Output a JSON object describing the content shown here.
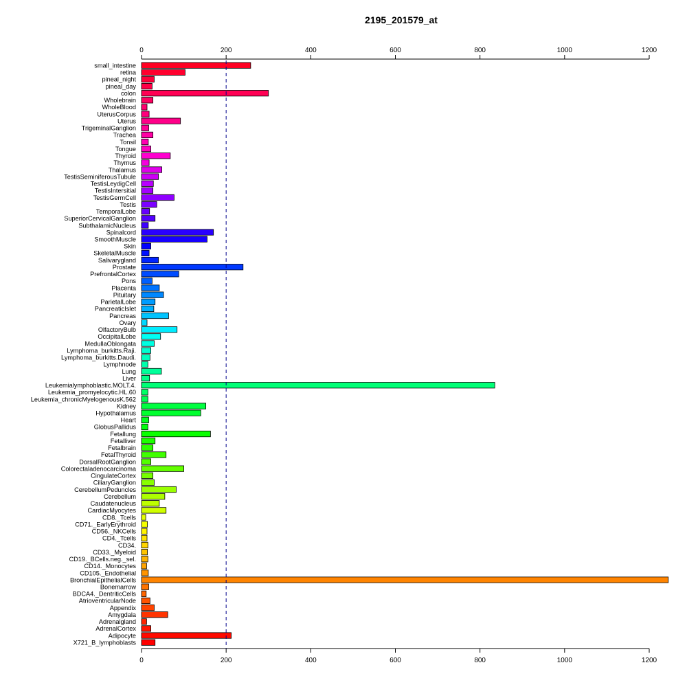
{
  "chart_data": {
    "type": "bar",
    "orientation": "horizontal",
    "title": "2195_201579_at",
    "xlim": [
      0,
      1250
    ],
    "x_ticks": [
      0,
      200,
      400,
      600,
      800,
      1000,
      1200
    ],
    "tick_labels": [
      "0",
      "200",
      "400",
      "600",
      "800",
      "1000",
      "1200"
    ],
    "axes_positions": [
      "top",
      "bottom"
    ],
    "reference_line": 200,
    "categories": [
      "small_intestine",
      "retina",
      "pineal_night",
      "pineal_day",
      "colon",
      "Wholebrain",
      "WholeBlood",
      "UterusCorpus",
      "Uterus",
      "TrigeminalGanglion",
      "Trachea",
      "Tonsil",
      "Tongue",
      "Thyroid",
      "Thymus",
      "Thalamus",
      "TestisSeminiferousTubule",
      "TestisLeydigCell",
      "TestisIntersitial",
      "TestisGermCell",
      "Testis",
      "TemporalLobe",
      "SuperiorCervicalGanglion",
      "SubthalamicNucleus",
      "Spinalcord",
      "SmoothMuscle",
      "Skin",
      "SkeletalMuscle",
      "Salivarygland",
      "Prostate",
      "PrefrontalCortex",
      "Pons",
      "Placenta",
      "Pituitary",
      "ParietalLobe",
      "PancreaticIslet",
      "Pancreas",
      "Ovary",
      "OlfactoryBulb",
      "OccipitalLobe",
      "MedullaOblongata",
      "Lymphoma_burkitts.Raji.",
      "Lymphoma_burkitts.Daudi.",
      "Lymphnode",
      "Lung",
      "Liver",
      "Leukemialymphoblastic.MOLT.4.",
      "Leukemia_promyelocytic.HL.60",
      "Leukemia_chronicMyelogenousK.562",
      "Kidney",
      "Hypothalamus",
      "Heart",
      "GlobusPallidus",
      "Fetallung",
      "Fetalliver",
      "Fetalbrain",
      "FetalThyroid",
      "DorsalRootGanglion",
      "Colorectaladenocarcinoma",
      "CingulateCortex",
      "CiliaryGanglion",
      "CerebellumPeduncles",
      "Cerebellum",
      "Caudatenucleus",
      "CardiacMyocytes",
      "CD8._Tcells",
      "CD71._EarlyErythroid",
      "CD56._NKCells",
      "CD4._Tcells",
      "CD34.",
      "CD33._Myeloid",
      "CD19._BCells.neg._sel.",
      "CD14._Monocytes",
      "CD105._Endothelial",
      "BronchialEpithelialCells",
      "Bonemarrow",
      "BDCA4._DentriticCells",
      "AtrioventricularNode",
      "Appendix",
      "Amygdala",
      "Adrenalgland",
      "AdrenalCortex",
      "Adipocyte",
      "X721_B_lymphoblasts"
    ],
    "values": [
      258,
      103,
      30,
      25,
      300,
      27,
      13,
      18,
      92,
      17,
      27,
      16,
      22,
      68,
      18,
      48,
      40,
      28,
      27,
      77,
      36,
      19,
      32,
      16,
      170,
      155,
      22,
      18,
      40,
      240,
      88,
      25,
      42,
      52,
      32,
      29,
      64,
      13,
      84,
      45,
      30,
      22,
      20,
      15,
      47,
      19,
      835,
      15,
      15,
      152,
      140,
      17,
      15,
      163,
      32,
      27,
      58,
      22,
      100,
      27,
      30,
      82,
      55,
      42,
      58,
      10,
      14,
      13,
      13,
      15,
      14,
      15,
      12,
      16,
      1245,
      17,
      11,
      20,
      30,
      62,
      12,
      22,
      212,
      32
    ],
    "colors": [
      "#ff0022",
      "#ff002e",
      "#ff003a",
      "#ff0047",
      "#ff0054",
      "#ff0061",
      "#ff006e",
      "#ff007c",
      "#ff0089",
      "#ff0097",
      "#ff00a4",
      "#ff00b2",
      "#ff00c0",
      "#ff00cf",
      "#f400dd",
      "#e000eb",
      "#cc00f5",
      "#b800ff",
      "#a400ff",
      "#8f00ff",
      "#7b00ff",
      "#6700ff",
      "#5300ff",
      "#3e00ff",
      "#2a00ff",
      "#1600ff",
      "#0200ff",
      "#0010ff",
      "#0024ff",
      "#0038ff",
      "#004cff",
      "#0060ff",
      "#0074ff",
      "#0088ff",
      "#009cff",
      "#00b0ff",
      "#00c4ff",
      "#00d8ff",
      "#00ecff",
      "#00fff4",
      "#00ffe2",
      "#00ffd0",
      "#00ffbe",
      "#00ffac",
      "#00ff9a",
      "#00ff88",
      "#00ff76",
      "#00ff64",
      "#00ff52",
      "#00ff40",
      "#00ff2e",
      "#00ff1c",
      "#00ff0a",
      "#0aff00",
      "#1cff00",
      "#2eff00",
      "#40ff00",
      "#52ff00",
      "#64ff00",
      "#76ff00",
      "#88ff00",
      "#9aff00",
      "#acff00",
      "#beff00",
      "#d0ff00",
      "#e2ff00",
      "#f4ff00",
      "#fff400",
      "#ffe400",
      "#ffd400",
      "#ffc400",
      "#ffb400",
      "#ffa400",
      "#ff9400",
      "#ff8400",
      "#ff7400",
      "#ff6400",
      "#ff5400",
      "#ff4400",
      "#ff3400",
      "#ff2400",
      "#ff1400",
      "#ff0a00",
      "#ff0000"
    ],
    "reference_line_color": "#00008b"
  }
}
